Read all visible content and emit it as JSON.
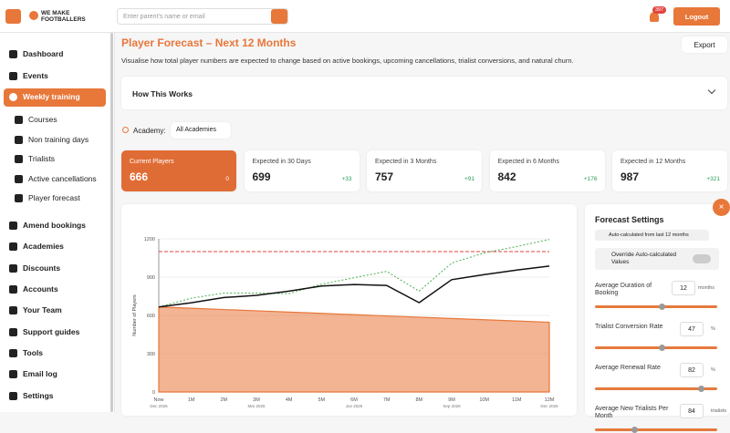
{
  "header": {
    "logo": "WE MAKE FOOTBALLERS",
    "search_placeholder": "Enter parent's name or email",
    "badge": "397",
    "logout": "Logout"
  },
  "sidebar": {
    "nav": [
      "Dashboard",
      "Events",
      "Weekly training"
    ],
    "weekly_training_items": [
      "Courses",
      "Non training days",
      "Trialists",
      "Active cancellations",
      "Player forecast"
    ],
    "nav_more": [
      "Amend bookings",
      "Academies",
      "Discounts",
      "Accounts",
      "Your Team",
      "Support guides",
      "Tools",
      "Email log",
      "Settings"
    ]
  },
  "page": {
    "title": "Player Forecast – Next 12 Months",
    "export": "Export",
    "description": "Visualise how total player numbers are expected to change based on active bookings, upcoming cancellations, trialist conversions, and natural churn.",
    "how_it_works": "How This Works",
    "academy_label": "Academy:",
    "academy_value": "All Academies"
  },
  "stats": [
    {
      "title": "Current Players",
      "value": "666",
      "delta": "0"
    },
    {
      "title": "Expected in 30 Days",
      "value": "699",
      "delta": "+33"
    },
    {
      "title": "Expected in 3 Months",
      "value": "757",
      "delta": "+91"
    },
    {
      "title": "Expected in 6 Months",
      "value": "842",
      "delta": "+176"
    },
    {
      "title": "Expected in 12 Months",
      "value": "987",
      "delta": "+321"
    }
  ],
  "settings": {
    "title": "Forecast Settings",
    "auto_note": "Auto-calculated from last 12 months",
    "override": "Override Auto-calculated Values",
    "fields": [
      {
        "label": "Average Duration of Booking",
        "value": "12",
        "unit": "months"
      },
      {
        "label": "Trialist Conversion Rate",
        "value": "47",
        "unit": "%"
      },
      {
        "label": "Average Renewal Rate",
        "value": "82",
        "unit": "%"
      },
      {
        "label": "Average New Trialists Per Month",
        "value": "84",
        "unit": "trialists"
      }
    ]
  },
  "chart_data": {
    "type": "line",
    "y_label": "Number of Players",
    "categories": [
      "Now",
      "1M",
      "2M",
      "3M",
      "4M",
      "5M",
      "6M",
      "7M",
      "8M",
      "9M",
      "10M",
      "11M",
      "12M"
    ],
    "x_sublabels": [
      "Dec 2025",
      null,
      null,
      "Mar 2026",
      null,
      null,
      "Jun 2026",
      null,
      null,
      "Sep 2026",
      null,
      null,
      "Dec 2026"
    ],
    "ylim": [
      0,
      1200
    ],
    "yticks": [
      0,
      300,
      600,
      900,
      1200
    ],
    "grid": true,
    "series": [
      {
        "style": "area",
        "color": "#e8773a",
        "values": [
          666,
          656,
          646,
          636,
          626,
          616,
          606,
          596,
          586,
          576,
          566,
          556,
          546
        ]
      },
      {
        "style": "reference",
        "color": "#e0463d",
        "values": [
          1100,
          1100,
          1100,
          1100,
          1100,
          1100,
          1100,
          1100,
          1100,
          1100,
          1100,
          1100,
          1100
        ]
      },
      {
        "style": "dashed",
        "color": "#4caf50",
        "values": [
          666,
          735,
          775,
          775,
          770,
          845,
          895,
          945,
          790,
          1010,
          1090,
          1140,
          1195
        ]
      },
      {
        "style": "solid",
        "color": "#111111",
        "values": [
          666,
          699,
          740,
          757,
          790,
          830,
          842,
          835,
          700,
          880,
          920,
          955,
          987
        ]
      }
    ]
  }
}
